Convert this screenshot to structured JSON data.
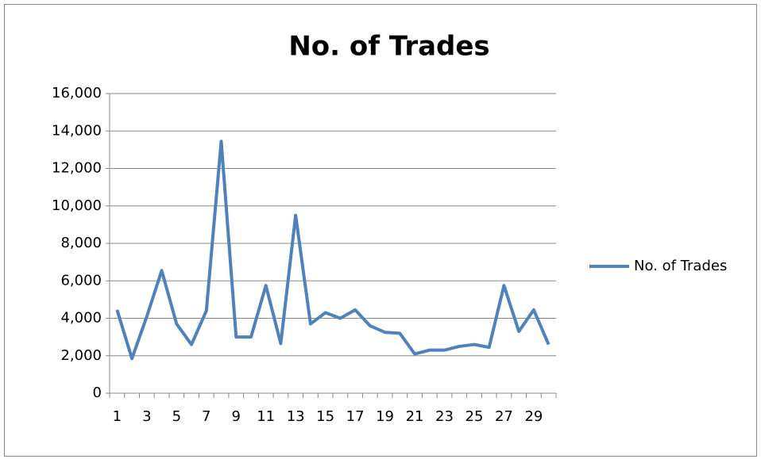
{
  "chart_data": {
    "type": "line",
    "title": "No. of Trades",
    "categories": [
      1,
      null,
      3,
      null,
      5,
      null,
      7,
      null,
      9,
      null,
      11,
      null,
      13,
      null,
      15,
      null,
      17,
      null,
      19,
      null,
      21,
      null,
      23,
      null,
      25,
      null,
      27,
      null,
      29,
      null
    ],
    "series": [
      {
        "name": "No. of Trades",
        "color": "#4f81bd",
        "values": [
          4450,
          1850,
          4100,
          6550,
          3700,
          2600,
          4400,
          13450,
          3000,
          3000,
          5750,
          2650,
          9500,
          3700,
          4300,
          4000,
          4450,
          3600,
          3250,
          3200,
          2100,
          2300,
          2300,
          2500,
          2600,
          2450,
          5750,
          3300,
          4450,
          2600
        ]
      }
    ],
    "ylim": [
      0,
      16000
    ],
    "yticks": [
      0,
      {
        "value": 2000,
        "label": "2,000"
      },
      {
        "value": 4000,
        "label": "4,000"
      },
      {
        "value": 6000,
        "label": "6,000"
      },
      {
        "value": 8000,
        "label": "8,000"
      },
      {
        "value": 10000,
        "label": "10,000"
      },
      {
        "value": 12000,
        "label": "12,000"
      },
      {
        "value": 14000,
        "label": "14,000"
      },
      {
        "value": 16000,
        "label": "16,000"
      }
    ],
    "grid": true,
    "legend": "right"
  }
}
